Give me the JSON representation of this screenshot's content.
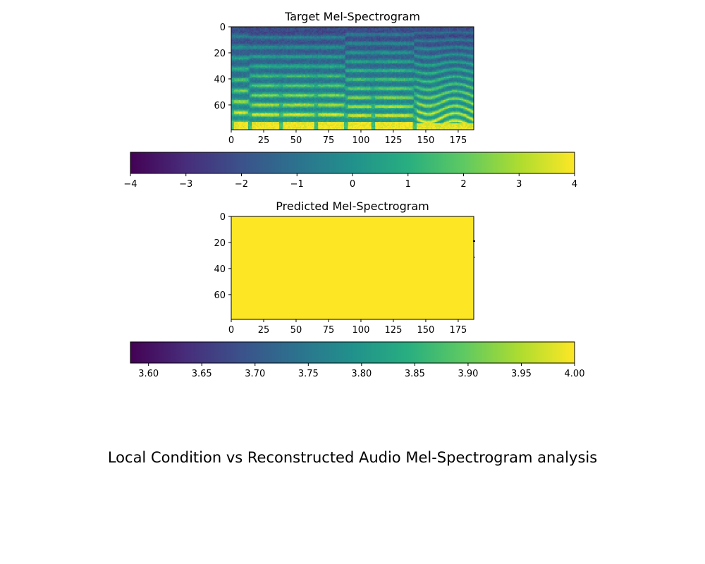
{
  "suptitle": "Local Condition vs Reconstructed Audio Mel-Spectrogram analysis",
  "chart_data": [
    {
      "type": "heatmap",
      "title": "Target Mel-Spectrogram",
      "colormap": "viridis",
      "xlim": [
        0,
        187
      ],
      "ylim": [
        79,
        0
      ],
      "xticks": [
        "0",
        "25",
        "50",
        "75",
        "100",
        "125",
        "150",
        "175"
      ],
      "yticks": [
        "0",
        "20",
        "40",
        "60"
      ],
      "xtick_values": [
        0,
        25,
        50,
        75,
        100,
        125,
        150,
        175
      ],
      "ytick_values": [
        0,
        20,
        40,
        60
      ],
      "colorbar": {
        "orientation": "horizontal",
        "range": [
          -4,
          4
        ],
        "ticks": [
          "−4",
          "−3",
          "−2",
          "−1",
          "0",
          "1",
          "2",
          "3",
          "4"
        ],
        "tick_values": [
          -4,
          -3,
          -2,
          -1,
          0,
          1,
          2,
          3,
          4
        ]
      },
      "segments": [
        {
          "x": [
            0,
            13
          ],
          "type": "harmonic",
          "spacing": 8.5
        },
        {
          "x": [
            14,
            37
          ],
          "type": "harmonic",
          "spacing": 7.5
        },
        {
          "x": [
            38,
            64
          ],
          "type": "harmonic",
          "spacing": 7.5
        },
        {
          "x": [
            65,
            87
          ],
          "type": "harmonic",
          "spacing": 7.5
        },
        {
          "x": [
            88,
            108
          ],
          "type": "harmonic",
          "spacing": 7.0
        },
        {
          "x": [
            109,
            140
          ],
          "type": "harmonic",
          "spacing": 7.0
        },
        {
          "x": [
            141,
            187
          ],
          "type": "wavy",
          "spacing": 6.0
        }
      ]
    },
    {
      "type": "heatmap",
      "title": "Predicted Mel-Spectrogram",
      "colormap": "viridis",
      "xlim": [
        0,
        187
      ],
      "ylim": [
        79,
        0
      ],
      "xticks": [
        "0",
        "25",
        "50",
        "75",
        "100",
        "125",
        "150",
        "175"
      ],
      "yticks": [
        "0",
        "20",
        "40",
        "60"
      ],
      "xtick_values": [
        0,
        25,
        50,
        75,
        100,
        125,
        150,
        175
      ],
      "ytick_values": [
        0,
        20,
        40,
        60
      ],
      "uniform_value": 4.0,
      "colorbar": {
        "orientation": "horizontal",
        "range": [
          3.583,
          4.0
        ],
        "ticks": [
          "3.60",
          "3.65",
          "3.70",
          "3.75",
          "3.80",
          "3.85",
          "3.90",
          "3.95",
          "4.00"
        ],
        "tick_values": [
          3.6,
          3.65,
          3.7,
          3.75,
          3.8,
          3.85,
          3.9,
          3.95,
          4.0
        ]
      }
    }
  ]
}
